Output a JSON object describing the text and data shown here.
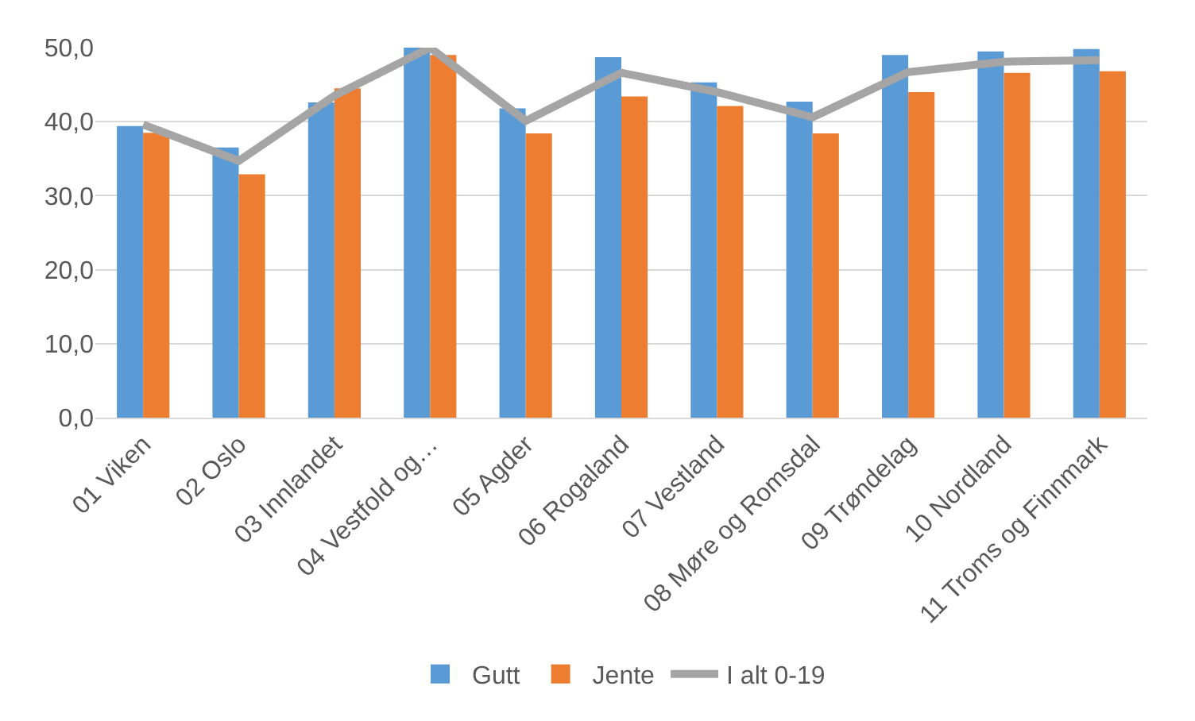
{
  "chart_data": {
    "type": "bar",
    "categories": [
      "01 Viken",
      "02 Oslo",
      "03 Innlandet",
      "04 Vestfold og…",
      "05 Agder",
      "06 Rogaland",
      "07 Vestland",
      "08 Møre og Romsdal",
      "09 Trøndelag",
      "10 Nordland",
      "11 Troms og Finnmark"
    ],
    "series": [
      {
        "name": "Gutt",
        "color": "#5b9bd5",
        "values": [
          39.4,
          36.5,
          42.6,
          50.0,
          41.8,
          48.7,
          45.3,
          42.7,
          49.0,
          49.5,
          49.8
        ]
      },
      {
        "name": "Jente",
        "color": "#ed7d31",
        "values": [
          38.5,
          32.9,
          44.5,
          49.0,
          38.4,
          43.4,
          42.1,
          38.4,
          44.0,
          46.6,
          46.8
        ]
      },
      {
        "name": "I alt 0-19",
        "type": "line",
        "color": "#a5a5a5",
        "values": [
          39.6,
          34.7,
          43.5,
          50.0,
          40.1,
          46.6,
          44.0,
          40.6,
          46.7,
          48.1,
          48.3
        ]
      }
    ],
    "ylim": [
      0,
      50
    ],
    "yticks": [
      {
        "value": 0,
        "label": "0,0"
      },
      {
        "value": 10,
        "label": "10,0"
      },
      {
        "value": 20,
        "label": "20,0"
      },
      {
        "value": 30,
        "label": "30,0"
      },
      {
        "value": 40,
        "label": "40,0"
      },
      {
        "value": 50,
        "label": "50,0"
      }
    ],
    "grid": "y",
    "legend": "bottom",
    "marker": "none"
  }
}
